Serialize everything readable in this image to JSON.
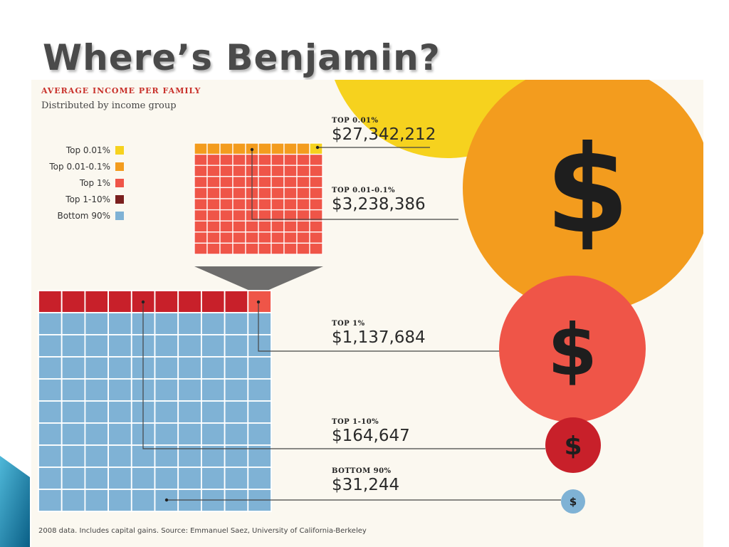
{
  "slide": {
    "title": "Where’s Benjamin?"
  },
  "chart_data": {
    "type": "other",
    "title": "AVERAGE INCOME PER FAMILY",
    "subtitle": "Distributed by income group",
    "note": "2008 data. Includes capital gains. Source: Emmanuel Saez, University of California-Berkeley",
    "legend": [
      {
        "label": "Top 0.01%",
        "color": "#f6d21e"
      },
      {
        "label": "Top 0.01-0.1%",
        "color": "#f39c1e"
      },
      {
        "label": "Top 1%",
        "color": "#ef5548"
      },
      {
        "label": "Top 1-10%",
        "color": "#7a1f1e"
      },
      {
        "label": "Bottom 90%",
        "color": "#7fb2d5"
      }
    ],
    "series": [
      {
        "group": "TOP 0.01%",
        "value_label": "$27,342,212",
        "value": 27342212,
        "color": "#f6d21e"
      },
      {
        "group": "TOP 0.01-0.1%",
        "value_label": "$3,238,386",
        "value": 3238386,
        "color": "#f39c1e"
      },
      {
        "group": "TOP 1%",
        "value_label": "$1,137,684",
        "value": 1137684,
        "color": "#ef5548"
      },
      {
        "group": "TOP 1-10%",
        "value_label": "$164,647",
        "value": 164647,
        "color": "#c8202a"
      },
      {
        "group": "BOTTOM 90%",
        "value_label": "$31,244",
        "value": 31244,
        "color": "#7fb2d5"
      }
    ],
    "top_grid": {
      "rows": 10,
      "cols": 10,
      "top_0_01_cells": 1,
      "top_0_01_0_1_cells": 9,
      "top_1_cells": 90
    },
    "bottom_grid": {
      "rows": 10,
      "cols": 10,
      "top_1_cells": 1,
      "top_1_10_cells": 9,
      "bottom_90_cells": 90
    },
    "circle_glyph": "$"
  },
  "colors": {
    "accent_yellow": "#f6d21e",
    "orange": "#f39c1e",
    "coral": "#ef5548",
    "red": "#c8202a",
    "blue": "#7fb2d5",
    "dark_red": "#7a1f1e",
    "panel_bg": "#fbf8f0",
    "grid_line": "#ffffff",
    "leader_line": "#444444",
    "funnel": "#555555"
  },
  "icons": {
    "dollar": "dollar-sign-icon",
    "corner": "teal-wedge-icon"
  }
}
